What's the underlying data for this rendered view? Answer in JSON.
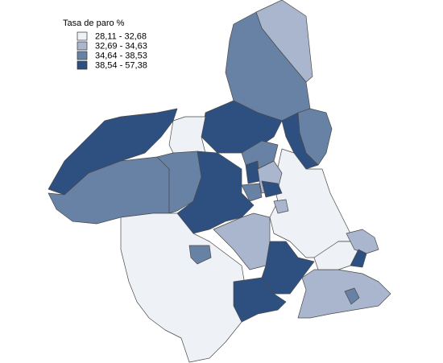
{
  "legend": {
    "title": "Tasa de paro %",
    "classes": [
      {
        "label": "28,11 - 32,68",
        "color": "#eef1f6"
      },
      {
        "label": "32,69 - 34,63",
        "color": "#a9b6cd"
      },
      {
        "label": "34,64 - 38,53",
        "color": "#6882a6"
      },
      {
        "label": "38,54 - 57,38",
        "color": "#2d5080"
      }
    ]
  }
}
